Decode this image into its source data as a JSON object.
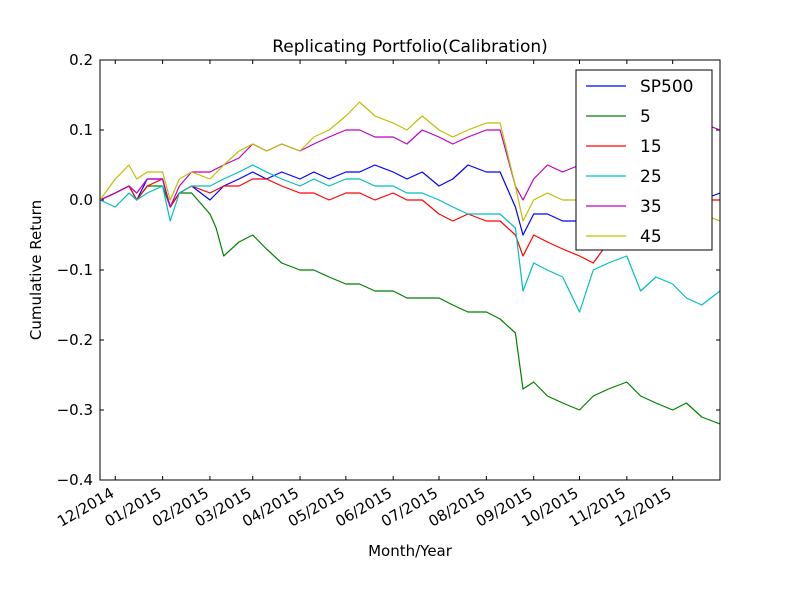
{
  "chart_data": {
    "type": "line",
    "title": "Replicating Portfolio(Calibration)",
    "xlabel": "Month/Year",
    "ylabel": "Cumulative Return",
    "ylim": [
      -0.4,
      0.2
    ],
    "yticks": [
      -0.4,
      -0.3,
      -0.2,
      -0.1,
      0.0,
      0.1,
      0.2
    ],
    "ytick_labels": [
      "−0.4",
      "−0.3",
      "−0.2",
      "−0.1",
      "0.0",
      "0.1",
      "0.2"
    ],
    "x_start": "2014-11-21",
    "x_end": "2016-01-01",
    "xticks": [
      "2014-12-01",
      "2015-01-01",
      "2015-02-01",
      "2015-03-01",
      "2015-04-01",
      "2015-05-01",
      "2015-06-01",
      "2015-07-01",
      "2015-08-01",
      "2015-09-01",
      "2015-10-01",
      "2015-11-01",
      "2015-12-01"
    ],
    "xtick_labels": [
      "12/2014",
      "01/2015",
      "02/2015",
      "03/2015",
      "04/2015",
      "05/2015",
      "06/2015",
      "07/2015",
      "08/2015",
      "09/2015",
      "10/2015",
      "11/2015",
      "12/2015"
    ],
    "grid": false,
    "legend_position": "top-right",
    "series": [
      {
        "name": "SP500",
        "color": "#0000ff",
        "points": [
          [
            "2014-11-21",
            0.0
          ],
          [
            "2014-12-01",
            0.01
          ],
          [
            "2014-12-10",
            0.02
          ],
          [
            "2014-12-15",
            0.0
          ],
          [
            "2014-12-22",
            0.03
          ],
          [
            "2015-01-01",
            0.03
          ],
          [
            "2015-01-06",
            -0.01
          ],
          [
            "2015-01-12",
            0.01
          ],
          [
            "2015-01-20",
            0.02
          ],
          [
            "2015-02-01",
            0.0
          ],
          [
            "2015-02-10",
            0.02
          ],
          [
            "2015-02-20",
            0.03
          ],
          [
            "2015-03-01",
            0.04
          ],
          [
            "2015-03-10",
            0.03
          ],
          [
            "2015-03-20",
            0.04
          ],
          [
            "2015-04-01",
            0.03
          ],
          [
            "2015-04-10",
            0.04
          ],
          [
            "2015-04-20",
            0.03
          ],
          [
            "2015-05-01",
            0.04
          ],
          [
            "2015-05-10",
            0.04
          ],
          [
            "2015-05-20",
            0.05
          ],
          [
            "2015-06-01",
            0.04
          ],
          [
            "2015-06-10",
            0.03
          ],
          [
            "2015-06-20",
            0.04
          ],
          [
            "2015-07-01",
            0.02
          ],
          [
            "2015-07-10",
            0.03
          ],
          [
            "2015-07-20",
            0.05
          ],
          [
            "2015-08-01",
            0.04
          ],
          [
            "2015-08-10",
            0.04
          ],
          [
            "2015-08-20",
            -0.01
          ],
          [
            "2015-08-25",
            -0.05
          ],
          [
            "2015-09-01",
            -0.02
          ],
          [
            "2015-09-10",
            -0.02
          ],
          [
            "2015-09-20",
            -0.03
          ],
          [
            "2015-10-01",
            -0.03
          ],
          [
            "2015-10-10",
            0.0
          ],
          [
            "2015-10-20",
            0.01
          ],
          [
            "2015-11-01",
            0.03
          ],
          [
            "2015-11-10",
            0.02
          ],
          [
            "2015-11-20",
            0.03
          ],
          [
            "2015-12-01",
            0.03
          ],
          [
            "2015-12-10",
            0.01
          ],
          [
            "2015-12-20",
            0.0
          ],
          [
            "2016-01-01",
            0.01
          ]
        ]
      },
      {
        "name": "5",
        "color": "#008000",
        "points": [
          [
            "2014-11-21",
            0.0
          ],
          [
            "2014-12-01",
            0.01
          ],
          [
            "2014-12-10",
            0.02
          ],
          [
            "2014-12-15",
            0.0
          ],
          [
            "2014-12-22",
            0.02
          ],
          [
            "2015-01-01",
            0.02
          ],
          [
            "2015-01-06",
            -0.01
          ],
          [
            "2015-01-12",
            0.01
          ],
          [
            "2015-01-20",
            0.01
          ],
          [
            "2015-02-01",
            -0.02
          ],
          [
            "2015-02-05",
            -0.04
          ],
          [
            "2015-02-10",
            -0.08
          ],
          [
            "2015-02-20",
            -0.06
          ],
          [
            "2015-03-01",
            -0.05
          ],
          [
            "2015-03-10",
            -0.07
          ],
          [
            "2015-03-20",
            -0.09
          ],
          [
            "2015-04-01",
            -0.1
          ],
          [
            "2015-04-10",
            -0.1
          ],
          [
            "2015-04-20",
            -0.11
          ],
          [
            "2015-05-01",
            -0.12
          ],
          [
            "2015-05-10",
            -0.12
          ],
          [
            "2015-05-20",
            -0.13
          ],
          [
            "2015-06-01",
            -0.13
          ],
          [
            "2015-06-10",
            -0.14
          ],
          [
            "2015-06-20",
            -0.14
          ],
          [
            "2015-07-01",
            -0.14
          ],
          [
            "2015-07-10",
            -0.15
          ],
          [
            "2015-07-20",
            -0.16
          ],
          [
            "2015-08-01",
            -0.16
          ],
          [
            "2015-08-10",
            -0.17
          ],
          [
            "2015-08-20",
            -0.19
          ],
          [
            "2015-08-25",
            -0.27
          ],
          [
            "2015-09-01",
            -0.26
          ],
          [
            "2015-09-10",
            -0.28
          ],
          [
            "2015-09-20",
            -0.29
          ],
          [
            "2015-10-01",
            -0.3
          ],
          [
            "2015-10-10",
            -0.28
          ],
          [
            "2015-10-20",
            -0.27
          ],
          [
            "2015-11-01",
            -0.26
          ],
          [
            "2015-11-10",
            -0.28
          ],
          [
            "2015-11-20",
            -0.29
          ],
          [
            "2015-12-01",
            -0.3
          ],
          [
            "2015-12-10",
            -0.29
          ],
          [
            "2015-12-20",
            -0.31
          ],
          [
            "2016-01-01",
            -0.32
          ]
        ]
      },
      {
        "name": "15",
        "color": "#ff0000",
        "points": [
          [
            "2014-11-21",
            0.0
          ],
          [
            "2014-12-01",
            0.01
          ],
          [
            "2014-12-10",
            0.02
          ],
          [
            "2014-12-15",
            0.0
          ],
          [
            "2014-12-22",
            0.02
          ],
          [
            "2015-01-01",
            0.03
          ],
          [
            "2015-01-06",
            -0.01
          ],
          [
            "2015-01-12",
            0.01
          ],
          [
            "2015-01-20",
            0.02
          ],
          [
            "2015-02-01",
            0.01
          ],
          [
            "2015-02-10",
            0.02
          ],
          [
            "2015-02-20",
            0.02
          ],
          [
            "2015-03-01",
            0.03
          ],
          [
            "2015-03-10",
            0.03
          ],
          [
            "2015-03-20",
            0.02
          ],
          [
            "2015-04-01",
            0.01
          ],
          [
            "2015-04-10",
            0.01
          ],
          [
            "2015-04-20",
            0.0
          ],
          [
            "2015-05-01",
            0.01
          ],
          [
            "2015-05-10",
            0.01
          ],
          [
            "2015-05-20",
            0.0
          ],
          [
            "2015-06-01",
            0.01
          ],
          [
            "2015-06-10",
            0.0
          ],
          [
            "2015-06-20",
            0.0
          ],
          [
            "2015-07-01",
            -0.02
          ],
          [
            "2015-07-10",
            -0.03
          ],
          [
            "2015-07-20",
            -0.02
          ],
          [
            "2015-08-01",
            -0.03
          ],
          [
            "2015-08-10",
            -0.03
          ],
          [
            "2015-08-20",
            -0.05
          ],
          [
            "2015-08-25",
            -0.08
          ],
          [
            "2015-09-01",
            -0.05
          ],
          [
            "2015-09-10",
            -0.06
          ],
          [
            "2015-09-20",
            -0.07
          ],
          [
            "2015-10-01",
            -0.08
          ],
          [
            "2015-10-10",
            -0.09
          ],
          [
            "2015-10-20",
            -0.06
          ],
          [
            "2015-11-01",
            -0.04
          ],
          [
            "2015-11-10",
            -0.03
          ],
          [
            "2015-11-20",
            -0.02
          ],
          [
            "2015-12-01",
            -0.02
          ],
          [
            "2015-12-10",
            0.0
          ],
          [
            "2015-12-20",
            0.0
          ],
          [
            "2016-01-01",
            0.0
          ]
        ]
      },
      {
        "name": "25",
        "color": "#00bfbf",
        "points": [
          [
            "2014-11-21",
            0.0
          ],
          [
            "2014-12-01",
            -0.01
          ],
          [
            "2014-12-10",
            0.01
          ],
          [
            "2014-12-15",
            0.0
          ],
          [
            "2014-12-22",
            0.01
          ],
          [
            "2015-01-01",
            0.02
          ],
          [
            "2015-01-06",
            -0.03
          ],
          [
            "2015-01-12",
            0.01
          ],
          [
            "2015-01-20",
            0.02
          ],
          [
            "2015-02-01",
            0.02
          ],
          [
            "2015-02-10",
            0.03
          ],
          [
            "2015-02-20",
            0.04
          ],
          [
            "2015-03-01",
            0.05
          ],
          [
            "2015-03-10",
            0.04
          ],
          [
            "2015-03-20",
            0.03
          ],
          [
            "2015-04-01",
            0.02
          ],
          [
            "2015-04-10",
            0.03
          ],
          [
            "2015-04-20",
            0.02
          ],
          [
            "2015-05-01",
            0.03
          ],
          [
            "2015-05-10",
            0.03
          ],
          [
            "2015-05-20",
            0.02
          ],
          [
            "2015-06-01",
            0.02
          ],
          [
            "2015-06-10",
            0.01
          ],
          [
            "2015-06-20",
            0.01
          ],
          [
            "2015-07-01",
            0.0
          ],
          [
            "2015-07-10",
            -0.01
          ],
          [
            "2015-07-20",
            -0.02
          ],
          [
            "2015-08-01",
            -0.02
          ],
          [
            "2015-08-10",
            -0.02
          ],
          [
            "2015-08-20",
            -0.04
          ],
          [
            "2015-08-25",
            -0.13
          ],
          [
            "2015-09-01",
            -0.09
          ],
          [
            "2015-09-10",
            -0.1
          ],
          [
            "2015-09-20",
            -0.11
          ],
          [
            "2015-10-01",
            -0.16
          ],
          [
            "2015-10-10",
            -0.1
          ],
          [
            "2015-10-20",
            -0.09
          ],
          [
            "2015-11-01",
            -0.08
          ],
          [
            "2015-11-10",
            -0.13
          ],
          [
            "2015-11-20",
            -0.11
          ],
          [
            "2015-12-01",
            -0.12
          ],
          [
            "2015-12-10",
            -0.14
          ],
          [
            "2015-12-20",
            -0.15
          ],
          [
            "2016-01-01",
            -0.13
          ]
        ]
      },
      {
        "name": "35",
        "color": "#bf00bf",
        "points": [
          [
            "2014-11-21",
            0.0
          ],
          [
            "2014-12-01",
            0.01
          ],
          [
            "2014-12-10",
            0.02
          ],
          [
            "2014-12-15",
            0.01
          ],
          [
            "2014-12-22",
            0.03
          ],
          [
            "2015-01-01",
            0.03
          ],
          [
            "2015-01-06",
            -0.01
          ],
          [
            "2015-01-12",
            0.02
          ],
          [
            "2015-01-20",
            0.04
          ],
          [
            "2015-02-01",
            0.04
          ],
          [
            "2015-02-10",
            0.05
          ],
          [
            "2015-02-20",
            0.06
          ],
          [
            "2015-03-01",
            0.08
          ],
          [
            "2015-03-10",
            0.07
          ],
          [
            "2015-03-20",
            0.08
          ],
          [
            "2015-04-01",
            0.07
          ],
          [
            "2015-04-10",
            0.08
          ],
          [
            "2015-04-20",
            0.09
          ],
          [
            "2015-05-01",
            0.1
          ],
          [
            "2015-05-10",
            0.1
          ],
          [
            "2015-05-20",
            0.09
          ],
          [
            "2015-06-01",
            0.09
          ],
          [
            "2015-06-10",
            0.08
          ],
          [
            "2015-06-20",
            0.1
          ],
          [
            "2015-07-01",
            0.09
          ],
          [
            "2015-07-10",
            0.08
          ],
          [
            "2015-07-20",
            0.09
          ],
          [
            "2015-08-01",
            0.1
          ],
          [
            "2015-08-10",
            0.1
          ],
          [
            "2015-08-20",
            0.02
          ],
          [
            "2015-08-25",
            0.0
          ],
          [
            "2015-09-01",
            0.03
          ],
          [
            "2015-09-10",
            0.05
          ],
          [
            "2015-09-20",
            0.04
          ],
          [
            "2015-10-01",
            0.05
          ],
          [
            "2015-10-10",
            0.05
          ],
          [
            "2015-10-20",
            0.06
          ],
          [
            "2015-11-01",
            0.07
          ],
          [
            "2015-11-10",
            0.08
          ],
          [
            "2015-11-20",
            0.09
          ],
          [
            "2015-12-01",
            0.1
          ],
          [
            "2015-12-10",
            0.1
          ],
          [
            "2015-12-20",
            0.11
          ],
          [
            "2016-01-01",
            0.1
          ]
        ]
      },
      {
        "name": "45",
        "color": "#bfbf00",
        "points": [
          [
            "2014-11-21",
            0.0
          ],
          [
            "2014-12-01",
            0.03
          ],
          [
            "2014-12-10",
            0.05
          ],
          [
            "2014-12-15",
            0.03
          ],
          [
            "2014-12-22",
            0.04
          ],
          [
            "2015-01-01",
            0.04
          ],
          [
            "2015-01-06",
            0.0
          ],
          [
            "2015-01-12",
            0.03
          ],
          [
            "2015-01-20",
            0.04
          ],
          [
            "2015-02-01",
            0.03
          ],
          [
            "2015-02-10",
            0.05
          ],
          [
            "2015-02-20",
            0.07
          ],
          [
            "2015-03-01",
            0.08
          ],
          [
            "2015-03-10",
            0.07
          ],
          [
            "2015-03-20",
            0.08
          ],
          [
            "2015-04-01",
            0.07
          ],
          [
            "2015-04-10",
            0.09
          ],
          [
            "2015-04-20",
            0.1
          ],
          [
            "2015-05-01",
            0.12
          ],
          [
            "2015-05-10",
            0.14
          ],
          [
            "2015-05-20",
            0.12
          ],
          [
            "2015-06-01",
            0.11
          ],
          [
            "2015-06-10",
            0.1
          ],
          [
            "2015-06-20",
            0.12
          ],
          [
            "2015-07-01",
            0.1
          ],
          [
            "2015-07-10",
            0.09
          ],
          [
            "2015-07-20",
            0.1
          ],
          [
            "2015-08-01",
            0.11
          ],
          [
            "2015-08-10",
            0.11
          ],
          [
            "2015-08-20",
            0.02
          ],
          [
            "2015-08-25",
            -0.03
          ],
          [
            "2015-09-01",
            0.0
          ],
          [
            "2015-09-10",
            0.01
          ],
          [
            "2015-09-20",
            0.0
          ],
          [
            "2015-10-01",
            0.0
          ],
          [
            "2015-10-10",
            -0.01
          ],
          [
            "2015-10-20",
            0.0
          ],
          [
            "2015-11-01",
            0.01
          ],
          [
            "2015-11-10",
            0.0
          ],
          [
            "2015-11-20",
            -0.01
          ],
          [
            "2015-12-01",
            -0.01
          ],
          [
            "2015-12-10",
            -0.02
          ],
          [
            "2015-12-20",
            -0.02
          ],
          [
            "2016-01-01",
            -0.03
          ]
        ]
      }
    ]
  }
}
